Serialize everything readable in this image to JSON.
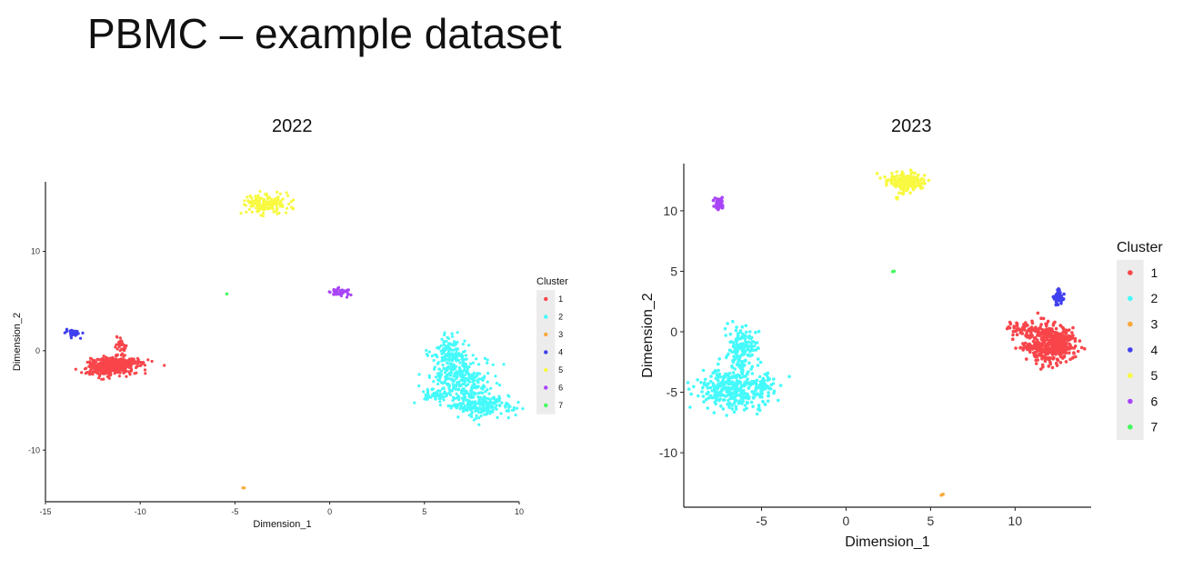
{
  "slide": {
    "title": "PBMC – example dataset"
  },
  "colors": {
    "1": "#f8454a",
    "2": "#45fafb",
    "3": "#f9a93a",
    "4": "#4040f0",
    "5": "#f8f940",
    "6": "#a845f8",
    "7": "#45f860"
  },
  "chart_data": [
    {
      "type": "scatter",
      "title": "2022",
      "xlabel": "Dimension_1",
      "ylabel": "Dimension_2",
      "xlim": [
        -15,
        10
      ],
      "ylim": [
        -15.2,
        17
      ],
      "xticks": [
        -15,
        -10,
        -5,
        0,
        5,
        10
      ],
      "yticks": [
        -10,
        0,
        10
      ],
      "grid": false,
      "legend": {
        "title": "Cluster",
        "placement": "right",
        "labels": [
          "1",
          "2",
          "3",
          "4",
          "5",
          "6",
          "7"
        ]
      },
      "clusters": [
        {
          "name": "1",
          "blobs": [
            {
              "x": -11.6,
              "y": -1.6,
              "sx": 0.6,
              "sy": 0.45,
              "n": 380
            },
            {
              "x": -10.6,
              "y": -1.2,
              "sx": 0.6,
              "sy": 0.2,
              "n": 60
            },
            {
              "x": -11.0,
              "y": 0.4,
              "sx": 0.15,
              "sy": 0.6,
              "n": 40
            }
          ]
        },
        {
          "name": "2",
          "blobs": [
            {
              "x": 6.2,
              "y": -0.3,
              "sx": 0.45,
              "sy": 0.9,
              "n": 120
            },
            {
              "x": 7.0,
              "y": -3.0,
              "sx": 0.8,
              "sy": 1.2,
              "n": 300
            },
            {
              "x": 8.0,
              "y": -5.5,
              "sx": 0.8,
              "sy": 0.6,
              "n": 220
            },
            {
              "x": 5.6,
              "y": -4.5,
              "sx": 0.4,
              "sy": 0.3,
              "n": 50
            }
          ]
        },
        {
          "name": "3",
          "blobs": [
            {
              "x": -4.5,
              "y": -13.8,
              "sx": 0.05,
              "sy": 0.05,
              "n": 2
            }
          ]
        },
        {
          "name": "4",
          "blobs": [
            {
              "x": -13.6,
              "y": 1.8,
              "sx": 0.25,
              "sy": 0.2,
              "n": 40
            }
          ]
        },
        {
          "name": "5",
          "blobs": [
            {
              "x": -3.4,
              "y": 14.8,
              "sx": 0.55,
              "sy": 0.45,
              "n": 160
            },
            {
              "x": -2.0,
              "y": 14.4,
              "sx": 0.05,
              "sy": 0.05,
              "n": 4
            }
          ]
        },
        {
          "name": "6",
          "blobs": [
            {
              "x": 0.5,
              "y": 5.9,
              "sx": 0.35,
              "sy": 0.2,
              "n": 40
            }
          ]
        },
        {
          "name": "7",
          "blobs": [
            {
              "x": -5.4,
              "y": 5.7,
              "sx": 0.03,
              "sy": 0.03,
              "n": 2
            }
          ]
        }
      ]
    },
    {
      "type": "scatter",
      "title": "2023",
      "xlabel": "Dimension_1",
      "ylabel": "Dimension_2",
      "xlim": [
        -9.6,
        14.5
      ],
      "ylim": [
        -14.5,
        13.9
      ],
      "xticks": [
        -5,
        0,
        5,
        10
      ],
      "yticks": [
        -10,
        -5,
        0,
        5,
        10
      ],
      "grid": false,
      "legend": {
        "title": "Cluster",
        "placement": "right",
        "labels": [
          "1",
          "2",
          "3",
          "4",
          "5",
          "6",
          "7"
        ]
      },
      "clusters": [
        {
          "name": "1",
          "blobs": [
            {
              "x": 12.2,
              "y": -1.0,
              "sx": 0.7,
              "sy": 0.8,
              "n": 420
            },
            {
              "x": 10.5,
              "y": 0.2,
              "sx": 0.5,
              "sy": 0.35,
              "n": 60
            },
            {
              "x": 10.8,
              "y": -1.3,
              "sx": 0.4,
              "sy": 0.1,
              "n": 25
            }
          ]
        },
        {
          "name": "2",
          "blobs": [
            {
              "x": -6.2,
              "y": -1.5,
              "sx": 0.45,
              "sy": 1.1,
              "n": 150
            },
            {
              "x": -6.5,
              "y": -4.8,
              "sx": 1.0,
              "sy": 0.8,
              "n": 320
            },
            {
              "x": -4.9,
              "y": -4.6,
              "sx": 0.25,
              "sy": 0.4,
              "n": 40
            }
          ]
        },
        {
          "name": "3",
          "blobs": [
            {
              "x": 5.7,
              "y": -13.5,
              "sx": 0.05,
              "sy": 0.05,
              "n": 2
            }
          ]
        },
        {
          "name": "4",
          "blobs": [
            {
              "x": 12.6,
              "y": 2.9,
              "sx": 0.15,
              "sy": 0.3,
              "n": 40
            }
          ]
        },
        {
          "name": "5",
          "blobs": [
            {
              "x": 3.5,
              "y": 12.4,
              "sx": 0.55,
              "sy": 0.35,
              "n": 170
            },
            {
              "x": 3.0,
              "y": 11.0,
              "sx": 0.05,
              "sy": 0.05,
              "n": 3
            }
          ]
        },
        {
          "name": "6",
          "blobs": [
            {
              "x": -7.5,
              "y": 10.6,
              "sx": 0.12,
              "sy": 0.35,
              "n": 40
            }
          ]
        },
        {
          "name": "7",
          "blobs": [
            {
              "x": 2.8,
              "y": 5.0,
              "sx": 0.03,
              "sy": 0.03,
              "n": 2
            }
          ]
        }
      ]
    }
  ]
}
